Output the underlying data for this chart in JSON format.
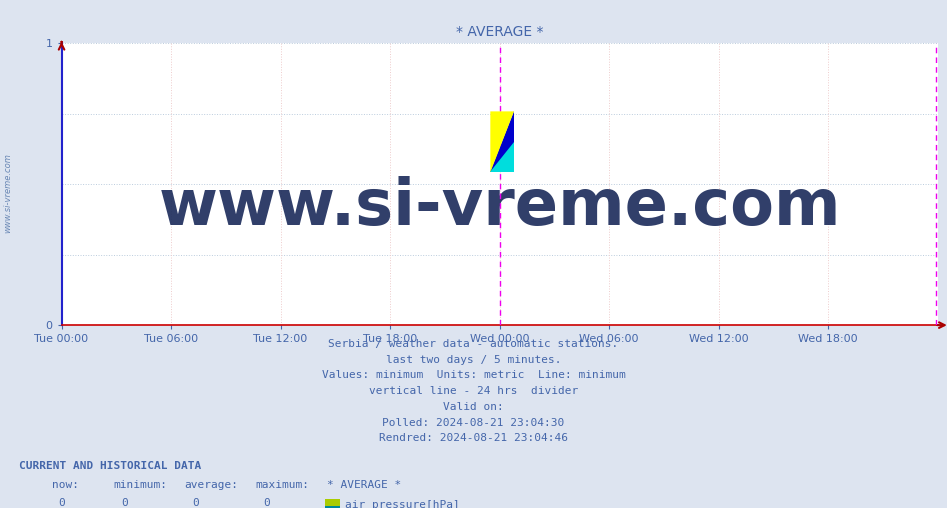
{
  "title": "* AVERAGE *",
  "title_color": "#4466aa",
  "title_fontsize": 10,
  "bg_color": "#dde4f0",
  "plot_bg_color": "#ffffff",
  "xlim_start": 0,
  "xlim_end": 576,
  "ylim": [
    0,
    1
  ],
  "yticks": [
    0,
    1
  ],
  "xtick_labels": [
    "Tue 00:00",
    "Tue 06:00",
    "Tue 12:00",
    "Tue 18:00",
    "Wed 00:00",
    "Wed 06:00",
    "Wed 12:00",
    "Wed 18:00"
  ],
  "xtick_positions": [
    0,
    72,
    144,
    216,
    288,
    360,
    432,
    504
  ],
  "grid_h_color": "#bbccdd",
  "grid_v_color": "#eecccc",
  "left_spine_color": "#2222cc",
  "bottom_spine_color": "#cc0000",
  "vline_24h_x": 288,
  "vline_24h_color": "#ee00ee",
  "vline_now_x": 575,
  "vline_now_color": "#ee00ee",
  "watermark_text": "www.si-vreme.com",
  "watermark_color": "#1a2a5a",
  "watermark_alpha": 0.9,
  "watermark_fontsize": 46,
  "sidewater_text": "www.si-vreme.com",
  "sidewater_color": "#5577aa",
  "sidewater_fontsize": 6,
  "tick_label_color": "#4466aa",
  "tick_fontsize": 8,
  "info_lines": [
    "Serbia / weather data - automatic stations.",
    "last two days / 5 minutes.",
    "Values: minimum  Units: metric  Line: minimum",
    "vertical line - 24 hrs  divider",
    "Valid on:",
    "Polled: 2024-08-21 23:04:30",
    "Rendred: 2024-08-21 23:04:46"
  ],
  "info_color": "#4466aa",
  "info_fontsize": 8,
  "current_data_label": "CURRENT AND HISTORICAL DATA",
  "current_data_color": "#4466aa",
  "current_data_fontsize": 8,
  "table_headers": [
    "now:",
    "minimum:",
    "average:",
    "maximum:",
    "* AVERAGE *"
  ],
  "table_values": [
    "0",
    "0",
    "0",
    "0"
  ],
  "series_label": "air pressure[hPa]",
  "arrow_color": "#aa0000",
  "top_arrow_color": "#aa0000",
  "logo_yellow": "#ffff00",
  "logo_cyan": "#00dddd",
  "logo_blue": "#0000cc",
  "swatch_yellow": "#aacc00",
  "swatch_teal": "#008899"
}
